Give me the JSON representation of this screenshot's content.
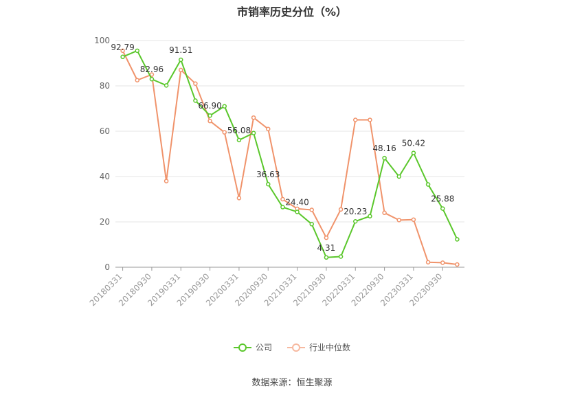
{
  "chart_data": {
    "type": "line",
    "title": "市销率历史分位（%）",
    "x": [
      "20180331",
      "20180630",
      "20180930",
      "20181231",
      "20190331",
      "20190630",
      "20190930",
      "20191231",
      "20200331",
      "20200630",
      "20200930",
      "20201231",
      "20210331",
      "20210630",
      "20210930",
      "20211231",
      "20220331",
      "20220630",
      "20220930",
      "20221231",
      "20230331",
      "20230630",
      "20230930",
      "20231231"
    ],
    "x_tick_labels": [
      "20180331",
      "20180930",
      "20190331",
      "20190930",
      "20200331",
      "20200930",
      "20210331",
      "20210930",
      "20220331",
      "20220930",
      "20230331",
      "20230930"
    ],
    "ylim": [
      0,
      100
    ],
    "yticks": [
      0,
      20,
      40,
      60,
      80,
      100
    ],
    "grid": true,
    "legend_position": "bottom",
    "series": [
      {
        "name": "公司",
        "color": "#5ac72b",
        "values": [
          92.79,
          95.5,
          82.96,
          80.2,
          91.51,
          73.5,
          66.9,
          71.0,
          56.08,
          59.2,
          36.63,
          26.5,
          24.4,
          19.0,
          4.31,
          4.7,
          20.23,
          22.5,
          48.16,
          40.0,
          50.42,
          36.5,
          25.88,
          12.3
        ],
        "labels": {
          "0": "92.79",
          "2": "82.96",
          "4": "91.51",
          "6": "66.90",
          "8": "56.08",
          "10": "36.63",
          "12": "24.40",
          "14": "4.31",
          "16": "20.23",
          "18": "48.16",
          "20": "50.42",
          "22": "25.88"
        }
      },
      {
        "name": "行业中位数",
        "color": "#f0936b",
        "values": [
          95.5,
          82.5,
          85.0,
          38.0,
          87.0,
          81.0,
          64.5,
          59.5,
          30.5,
          66.0,
          61.0,
          30.0,
          25.8,
          25.3,
          13.0,
          25.5,
          65.0,
          65.0,
          24.0,
          20.8,
          21.0,
          2.2,
          2.0,
          1.2
        ]
      }
    ]
  },
  "source": "数据来源：恒生聚源"
}
